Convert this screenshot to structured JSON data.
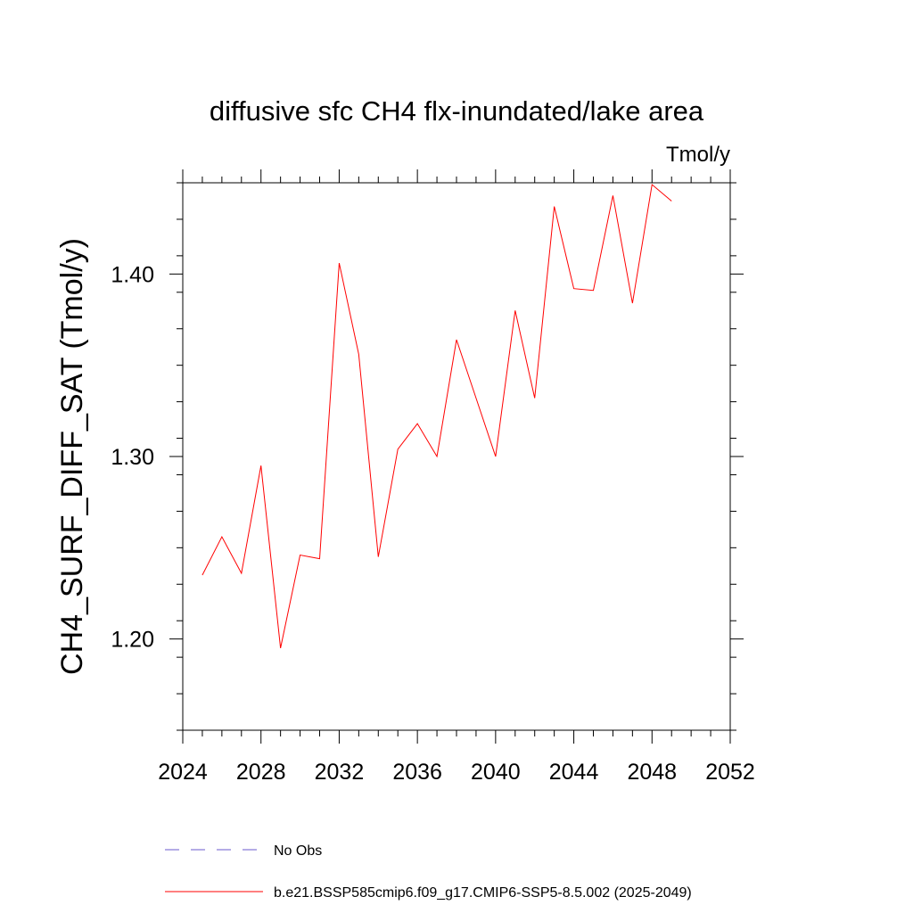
{
  "chart_data": {
    "type": "line",
    "title": "diffusive sfc CH4 flx-inundated/lake area",
    "units_label": "Tmol/y",
    "xlabel": "",
    "ylabel": "CH4_SURF_DIFF_SAT  (Tmol/y)",
    "xlim": [
      2024,
      2052
    ],
    "ylim": [
      1.15,
      1.45
    ],
    "x_major_ticks": [
      2024,
      2028,
      2032,
      2036,
      2040,
      2044,
      2048,
      2052
    ],
    "x_tick_labels": [
      "2024",
      "2028",
      "2032",
      "2036",
      "2040",
      "2044",
      "2048",
      "2052"
    ],
    "x_minor_step": 1,
    "y_major_ticks": [
      1.2,
      1.3,
      1.4
    ],
    "y_tick_labels": [
      "1.20",
      "1.30",
      "1.40"
    ],
    "y_minor_step": 0.02,
    "grid": false,
    "legend_position": "bottom",
    "series": [
      {
        "name": "b.e21.BSSP585cmip6.f09_g17.CMIP6-SSP5-8.5.002 (2025-2049)",
        "color": "#ff0000",
        "dash": "solid",
        "x": [
          2025,
          2026,
          2027,
          2028,
          2029,
          2030,
          2031,
          2032,
          2033,
          2034,
          2035,
          2036,
          2037,
          2038,
          2039,
          2040,
          2041,
          2042,
          2043,
          2044,
          2045,
          2046,
          2047,
          2048,
          2049
        ],
        "values": [
          1.235,
          1.256,
          1.236,
          1.295,
          1.195,
          1.246,
          1.244,
          1.406,
          1.356,
          1.245,
          1.304,
          1.318,
          1.3,
          1.364,
          1.332,
          1.3,
          1.38,
          1.332,
          1.437,
          1.392,
          1.391,
          1.443,
          1.384,
          1.449,
          1.44
        ]
      }
    ],
    "legend": [
      {
        "label": "No Obs",
        "color": "#6a5acd",
        "dash": "dashed"
      },
      {
        "label": "b.e21.BSSP585cmip6.f09_g17.CMIP6-SSP5-8.5.002 (2025-2049)",
        "color": "#ff0000",
        "dash": "solid"
      }
    ]
  }
}
